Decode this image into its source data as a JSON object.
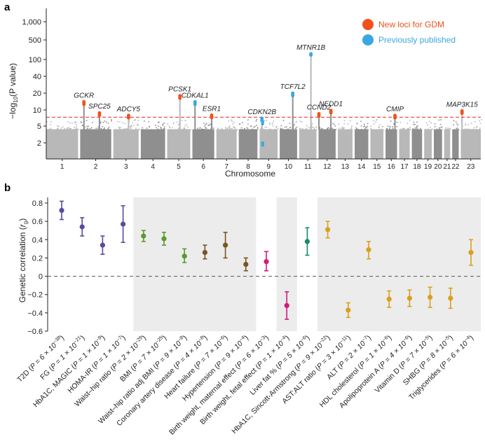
{
  "chart_data": [
    {
      "panel": "a",
      "type": "scatter",
      "subtype": "manhattan",
      "ylabel": "−log10(P value)",
      "xlabel": "Chromosome",
      "y_scale": "log-like",
      "y_ticks": [
        "1,000",
        "500",
        "100",
        "40",
        "20",
        "10",
        "5",
        "2"
      ],
      "y_tick_values": [
        1000,
        500,
        100,
        40,
        20,
        10,
        5,
        2
      ],
      "ylim": [
        1,
        1000
      ],
      "chromosomes": [
        "1",
        "2",
        "3",
        "4",
        "5",
        "6",
        "7",
        "8",
        "9",
        "10",
        "11",
        "12",
        "13",
        "14",
        "15",
        "16",
        "17",
        "18",
        "19",
        "20",
        "21",
        "22",
        "23"
      ],
      "chromosome_sizes": [
        249,
        243,
        198,
        190,
        181,
        171,
        159,
        146,
        141,
        136,
        135,
        134,
        115,
        107,
        102,
        90,
        83,
        80,
        59,
        64,
        47,
        51,
        156
      ],
      "significance_line": 7.3,
      "threshold_color": "#e8423a",
      "colors": {
        "new": "#f2501c",
        "published": "#3aa7e0",
        "grey_light": "#b8b8b8",
        "grey_dark": "#8f8f8f"
      },
      "legend": [
        {
          "label": "New loci for GDM",
          "color": "#f2501c"
        },
        {
          "label": "Previously published",
          "color": "#3aa7e0"
        }
      ],
      "legend_position": "top-right",
      "peaks": [
        {
          "gene": "GCKR",
          "chr": 2,
          "pos": 0.12,
          "value": 14,
          "type": "new"
        },
        {
          "gene": "SPC25",
          "chr": 2,
          "pos": 0.62,
          "value": 8.8,
          "type": "new"
        },
        {
          "gene": "ADCY5",
          "chr": 3,
          "pos": 0.6,
          "value": 7.9,
          "type": "new"
        },
        {
          "gene": "PCSK1",
          "chr": 5,
          "pos": 0.55,
          "value": 18,
          "type": "new"
        },
        {
          "gene": "CDKAL1",
          "chr": 6,
          "pos": 0.12,
          "value": 14,
          "type": "published"
        },
        {
          "gene": "ESR1",
          "chr": 6,
          "pos": 0.88,
          "value": 8.0,
          "type": "new"
        },
        {
          "gene": "CDKN2B",
          "chr": 9,
          "pos": 0.13,
          "value": 7.0,
          "type": "published"
        },
        {
          "gene": "TCF7L2",
          "chr": 10,
          "pos": 0.75,
          "value": 20,
          "type": "published"
        },
        {
          "gene": "MTNR1B",
          "chr": 11,
          "pos": 0.68,
          "value": 160,
          "type": "published"
        },
        {
          "gene": "CCND2",
          "chr": 12,
          "pos": 0.02,
          "value": 8.5,
          "type": "new"
        },
        {
          "gene": "NEDD1",
          "chr": 12,
          "pos": 0.72,
          "value": 9.8,
          "type": "new"
        },
        {
          "gene": "CMIP",
          "chr": 16,
          "pos": 0.82,
          "value": 7.9,
          "type": "new"
        },
        {
          "gene": "MAP3K15",
          "chr": 23,
          "pos": 0.06,
          "value": 9.6,
          "type": "new"
        }
      ]
    },
    {
      "panel": "b",
      "type": "scatter",
      "subtype": "point-with-errorbars",
      "ylabel": "Genetic correlation (rg)",
      "ylim": [
        -0.6,
        0.8
      ],
      "y_ticks": [
        "0.8",
        "0.6",
        "0.4",
        "0.2",
        "0",
        "−0.2",
        "−0.4",
        "−0.6"
      ],
      "y_tick_values": [
        0.8,
        0.6,
        0.4,
        0.2,
        0,
        -0.2,
        -0.4,
        -0.6
      ],
      "reference_line": 0,
      "shaded_groups": [
        [
          4,
          10
        ],
        [
          13,
          15
        ],
        [
          17,
          27
        ]
      ],
      "traits": [
        {
          "label": "T2D",
          "p": "P = 6 × 10",
          "exp": "−38",
          "rg": 0.72,
          "lo": 0.62,
          "hi": 0.82,
          "color": "#5b4aa0"
        },
        {
          "label": "FG",
          "p": "P = 1 × 10",
          "exp": "−21",
          "rg": 0.54,
          "lo": 0.44,
          "hi": 0.64,
          "color": "#5b4aa0"
        },
        {
          "label": "HbA1C, MAGIC",
          "p": "P = 1 × 10",
          "exp": "−9",
          "rg": 0.34,
          "lo": 0.24,
          "hi": 0.44,
          "color": "#5b4aa0"
        },
        {
          "label": "HOMA-IR",
          "p": "P = 1 × 10",
          "exp": "−7",
          "rg": 0.57,
          "lo": 0.37,
          "hi": 0.77,
          "color": "#5b4aa0"
        },
        {
          "label": "Waist–hip ratio",
          "p": "P = 2 × 10",
          "exp": "−29",
          "rg": 0.44,
          "lo": 0.38,
          "hi": 0.5,
          "color": "#5a9a2e"
        },
        {
          "label": "BMI",
          "p": "P = 7 × 10",
          "exp": "−25",
          "rg": 0.41,
          "lo": 0.34,
          "hi": 0.48,
          "color": "#5a9a2e"
        },
        {
          "label": "Waist–hip ratio adj BMI",
          "p": "P = 9 × 10",
          "exp": "−8",
          "rg": 0.22,
          "lo": 0.15,
          "hi": 0.3,
          "color": "#5a9a2e"
        },
        {
          "label": "Coronary artery disease",
          "p": "P = 4 × 10",
          "exp": "−8",
          "rg": 0.26,
          "lo": 0.19,
          "hi": 0.34,
          "color": "#7a5520"
        },
        {
          "label": "Heart failure",
          "p": "P = 7 × 10",
          "exp": "−6",
          "rg": 0.34,
          "lo": 0.2,
          "hi": 0.48,
          "color": "#7a5520"
        },
        {
          "label": "Hypertension",
          "p": "P = 9 × 10",
          "exp": "−4",
          "rg": 0.13,
          "lo": 0.06,
          "hi": 0.2,
          "color": "#7a5520"
        },
        {
          "label": "Birth weight, maternal effect",
          "p": "P = 6 × 10",
          "exp": "−3",
          "rg": 0.16,
          "lo": 0.06,
          "hi": 0.27,
          "color": "#d41a7a"
        },
        {
          "label": "Birth weight, fetal effect",
          "p": "P = 1 × 10",
          "exp": "−4",
          "rg": -0.32,
          "lo": -0.47,
          "hi": -0.17,
          "color": "#d41a7a"
        },
        {
          "label": "Liver fat %",
          "p": "P = 5 × 10",
          "exp": "−6",
          "rg": 0.38,
          "lo": 0.23,
          "hi": 0.53,
          "color": "#1a8a6a"
        },
        {
          "label": "HbA1C, Sincott-Armstrong",
          "p": "P = 9 × 10",
          "exp": "−22",
          "rg": 0.51,
          "lo": 0.42,
          "hi": 0.6,
          "color": "#d9a020"
        },
        {
          "label": "AST:ALT ratio",
          "p": "P = 3 × 10",
          "exp": "−11",
          "rg": -0.37,
          "lo": -0.45,
          "hi": -0.29,
          "color": "#d9a020"
        },
        {
          "label": "ALT",
          "p": "P = 2 × 10",
          "exp": "−7",
          "rg": 0.29,
          "lo": 0.19,
          "hi": 0.38,
          "color": "#d9a020"
        },
        {
          "label": "HDL cholesterol",
          "p": "P = 1 × 10",
          "exp": "−6",
          "rg": -0.25,
          "lo": -0.34,
          "hi": -0.16,
          "color": "#d9a020"
        },
        {
          "label": "Apolipoprotein A",
          "p": "P = 4 × 10",
          "exp": "−6",
          "rg": -0.24,
          "lo": -0.33,
          "hi": -0.15,
          "color": "#d9a020"
        },
        {
          "label": "Vitamin D",
          "p": "P = 7 × 10",
          "exp": "−5",
          "rg": -0.23,
          "lo": -0.34,
          "hi": -0.12,
          "color": "#d9a020"
        },
        {
          "label": "SHBG",
          "p": "P = 8 × 10",
          "exp": "−5",
          "rg": -0.24,
          "lo": -0.35,
          "hi": -0.13,
          "color": "#d9a020"
        },
        {
          "label": "Triglycerides",
          "p": "P = 6 × 10",
          "exp": "−4",
          "rg": 0.26,
          "lo": 0.12,
          "hi": 0.4,
          "color": "#d9a020"
        }
      ]
    }
  ],
  "panel_labels": {
    "a": "a",
    "b": "b"
  }
}
